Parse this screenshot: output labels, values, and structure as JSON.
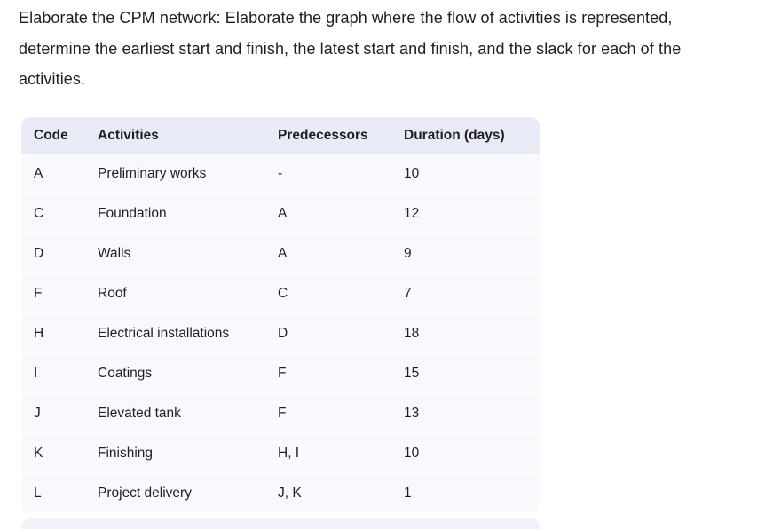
{
  "prompt": {
    "text": "Elaborate the CPM network: Elaborate the graph where the flow of activities is represented,\ndetermine the earliest start and finish, the latest start and finish, and the slack for each of the\nactivities."
  },
  "table": {
    "columns": [
      "Code",
      "Activities",
      "Predecessors",
      "Duration (days)"
    ],
    "rows": [
      {
        "code": "A",
        "activity": "Preliminary works",
        "predecessors": "-",
        "duration": "10"
      },
      {
        "code": "C",
        "activity": "Foundation",
        "predecessors": "A",
        "duration": "12"
      },
      {
        "code": "D",
        "activity": "Walls",
        "predecessors": "A",
        "duration": "9"
      },
      {
        "code": "F",
        "activity": "Roof",
        "predecessors": "C",
        "duration": "7"
      },
      {
        "code": "H",
        "activity": "Electrical installations",
        "predecessors": "D",
        "duration": "18"
      },
      {
        "code": "I",
        "activity": "Coatings",
        "predecessors": "F",
        "duration": "15"
      },
      {
        "code": "J",
        "activity": "Elevated tank",
        "predecessors": "F",
        "duration": "13"
      },
      {
        "code": "K",
        "activity": "Finishing",
        "predecessors": "H, I",
        "duration": "10"
      },
      {
        "code": "L",
        "activity": "Project delivery",
        "predecessors": "J, K",
        "duration": "1"
      }
    ]
  },
  "colors": {
    "header_bg": "#e8ebf6",
    "row_bg": "#f8f9fd",
    "text": "#1f1f1f",
    "next_block_bg": "#f1f3fa"
  }
}
